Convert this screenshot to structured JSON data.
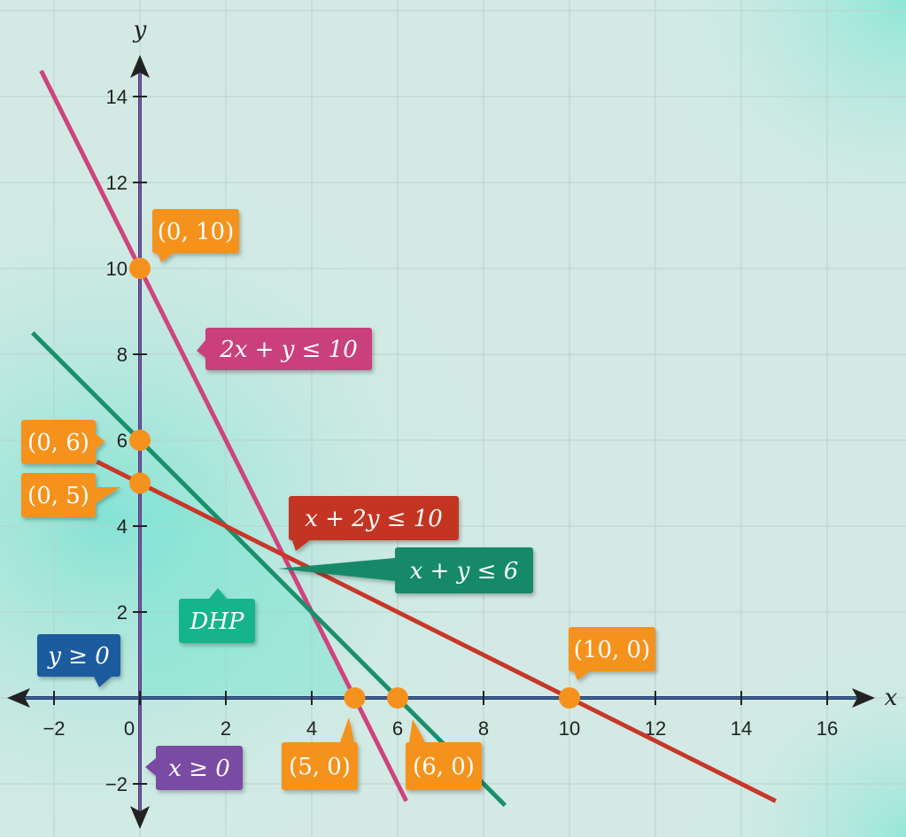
{
  "chart_data": {
    "type": "line",
    "title": "",
    "xlabel": "x",
    "ylabel": "y",
    "xlim": [
      -3,
      17.5
    ],
    "ylim": [
      -3,
      15.5
    ],
    "grid": true,
    "x_ticks": [
      -2,
      0,
      2,
      4,
      6,
      8,
      10,
      12,
      14,
      16
    ],
    "y_ticks": [
      -2,
      2,
      4,
      6,
      8,
      10,
      12,
      14
    ],
    "series": [
      {
        "name": "2x + y ≤ 10",
        "color": "#d0437e",
        "x": [
          -2.3,
          6.2
        ],
        "y": [
          14.6,
          -2.4
        ]
      },
      {
        "name": "x + y ≤ 6",
        "color": "#1a8f6a",
        "x": [
          -2.5,
          8.5
        ],
        "y": [
          8.5,
          -2.5
        ]
      },
      {
        "name": "x + 2y ≤ 10",
        "color": "#c8372a",
        "x": [
          -1,
          14.8
        ],
        "y": [
          5.5,
          -2.4
        ]
      }
    ],
    "points": [
      {
        "label": "(0, 10)",
        "x": 0,
        "y": 10
      },
      {
        "label": "(0, 6)",
        "x": 0,
        "y": 6
      },
      {
        "label": "(0, 5)",
        "x": 0,
        "y": 5
      },
      {
        "label": "(5, 0)",
        "x": 5,
        "y": 0
      },
      {
        "label": "(6, 0)",
        "x": 6,
        "y": 0
      },
      {
        "label": "(10, 0)",
        "x": 10,
        "y": 0
      }
    ],
    "annotations": [
      {
        "id": "ineq1",
        "text": "2x + y ≤ 10",
        "color": "#c93f7c"
      },
      {
        "id": "ineq2",
        "text": "x + 2y ≤ 10",
        "color": "#c33524"
      },
      {
        "id": "ineq3",
        "text": "x + y ≤ 6",
        "color": "#138a68"
      },
      {
        "id": "ygeq",
        "text": "y ≥ 0",
        "color": "#1f5c9e"
      },
      {
        "id": "xgeq",
        "text": "x ≥ 0",
        "color": "#7a4ca3"
      },
      {
        "id": "region",
        "text": "DHP",
        "color": "#16b48c"
      }
    ],
    "point_color": "#f5921e",
    "axis_color": "#2d3c63"
  }
}
